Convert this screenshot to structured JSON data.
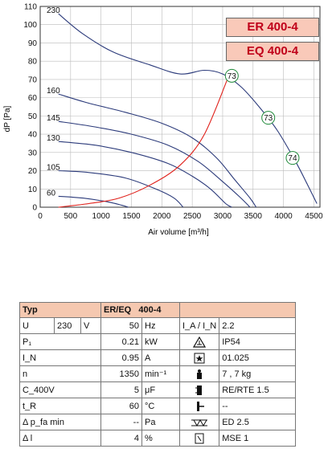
{
  "models": [
    "ER 400-4",
    "EQ 400-4"
  ],
  "chart_data": {
    "type": "line",
    "xlabel": "Air volume [m³/h]",
    "ylabel": "dP [Pa]",
    "xlim": [
      0,
      4600
    ],
    "ylim": [
      0,
      110
    ],
    "x_ticks": [
      0,
      500,
      1000,
      1500,
      2000,
      2500,
      3000,
      3500,
      4000,
      4500
    ],
    "y_ticks": [
      0,
      10,
      20,
      30,
      40,
      50,
      60,
      70,
      80,
      90,
      100,
      110
    ],
    "grid": true,
    "series": [
      {
        "name": "230",
        "color": "#2b3a7a",
        "points": [
          [
            300,
            106
          ],
          [
            700,
            95
          ],
          [
            1200,
            85
          ],
          [
            1800,
            78
          ],
          [
            2300,
            73
          ],
          [
            2700,
            75
          ],
          [
            3000,
            73
          ],
          [
            3300,
            66
          ],
          [
            3600,
            55
          ],
          [
            3900,
            42
          ],
          [
            4200,
            25
          ],
          [
            4400,
            12
          ],
          [
            4550,
            2
          ]
        ]
      },
      {
        "name": "160",
        "color": "#2b3a7a",
        "points": [
          [
            300,
            62
          ],
          [
            800,
            57
          ],
          [
            1400,
            52
          ],
          [
            2000,
            46
          ],
          [
            2500,
            38
          ],
          [
            2900,
            27
          ],
          [
            3200,
            15
          ],
          [
            3450,
            5
          ],
          [
            3550,
            0
          ]
        ]
      },
      {
        "name": "145",
        "color": "#2b3a7a",
        "points": [
          [
            300,
            47
          ],
          [
            900,
            44
          ],
          [
            1500,
            40
          ],
          [
            2100,
            34
          ],
          [
            2600,
            25
          ],
          [
            3000,
            14
          ],
          [
            3300,
            5
          ],
          [
            3450,
            0
          ]
        ]
      },
      {
        "name": "130",
        "color": "#2b3a7a",
        "points": [
          [
            300,
            36
          ],
          [
            900,
            34
          ],
          [
            1500,
            30
          ],
          [
            2100,
            24
          ],
          [
            2500,
            17
          ],
          [
            2800,
            10
          ],
          [
            3050,
            2
          ],
          [
            3150,
            0
          ]
        ]
      },
      {
        "name": "105",
        "color": "#2b3a7a",
        "points": [
          [
            300,
            20
          ],
          [
            800,
            19
          ],
          [
            1400,
            16
          ],
          [
            1900,
            10
          ],
          [
            2200,
            5
          ],
          [
            2350,
            0
          ]
        ]
      },
      {
        "name": "60",
        "color": "#2b3a7a",
        "points": [
          [
            300,
            6
          ],
          [
            700,
            5
          ],
          [
            1100,
            3
          ],
          [
            1350,
            1
          ],
          [
            1450,
            0
          ]
        ]
      }
    ],
    "system_curve": {
      "color": "#e0201a",
      "points": [
        [
          300,
          0
        ],
        [
          800,
          2
        ],
        [
          1300,
          5
        ],
        [
          1800,
          12
        ],
        [
          2300,
          23
        ],
        [
          2700,
          40
        ],
        [
          3100,
          72
        ]
      ]
    },
    "annotations": [
      {
        "label": "73",
        "x": 3150,
        "y": 72
      },
      {
        "label": "73",
        "x": 3750,
        "y": 49
      },
      {
        "label": "74",
        "x": 4150,
        "y": 27
      }
    ]
  },
  "table": {
    "header": [
      "Typ",
      "ER/EQ",
      "400-4"
    ],
    "rows": [
      {
        "sym": "U",
        "sub": "230",
        "subunit": "V",
        "val": "50",
        "unit": "Hz",
        "icon": "I_A / I_N",
        "right": "2.2"
      },
      {
        "sym": "P₁",
        "sub": "",
        "subunit": "",
        "val": "0.21",
        "unit": "kW",
        "icon": "ip-icon",
        "right": "IP54"
      },
      {
        "sym": "I_N",
        "sub": "",
        "subunit": "",
        "val": "0.95",
        "unit": "A",
        "icon": "star-box-icon",
        "right": "01.025"
      },
      {
        "sym": "n",
        "sub": "",
        "subunit": "",
        "val": "1350",
        "unit": "min⁻¹",
        "icon": "weight-icon",
        "right": "7 , 7 kg"
      },
      {
        "sym": "C_400V",
        "sub": "",
        "subunit": "",
        "val": "5",
        "unit": "μF",
        "icon": "capacitor-icon",
        "right": "RE/RTE 1.5"
      },
      {
        "sym": "t_R",
        "sub": "",
        "subunit": "",
        "val": "60",
        "unit": "°C",
        "icon": "thermo-icon",
        "right": "--"
      },
      {
        "sym": "Δ p_fa min",
        "sub": "",
        "subunit": "",
        "val": "--",
        "unit": "Pa",
        "icon": "duct-icon",
        "right": "ED 2.5"
      },
      {
        "sym": "Δ l",
        "sub": "",
        "subunit": "",
        "val": "4",
        "unit": "%",
        "icon": "switch-icon",
        "right": "MSE 1"
      }
    ]
  }
}
